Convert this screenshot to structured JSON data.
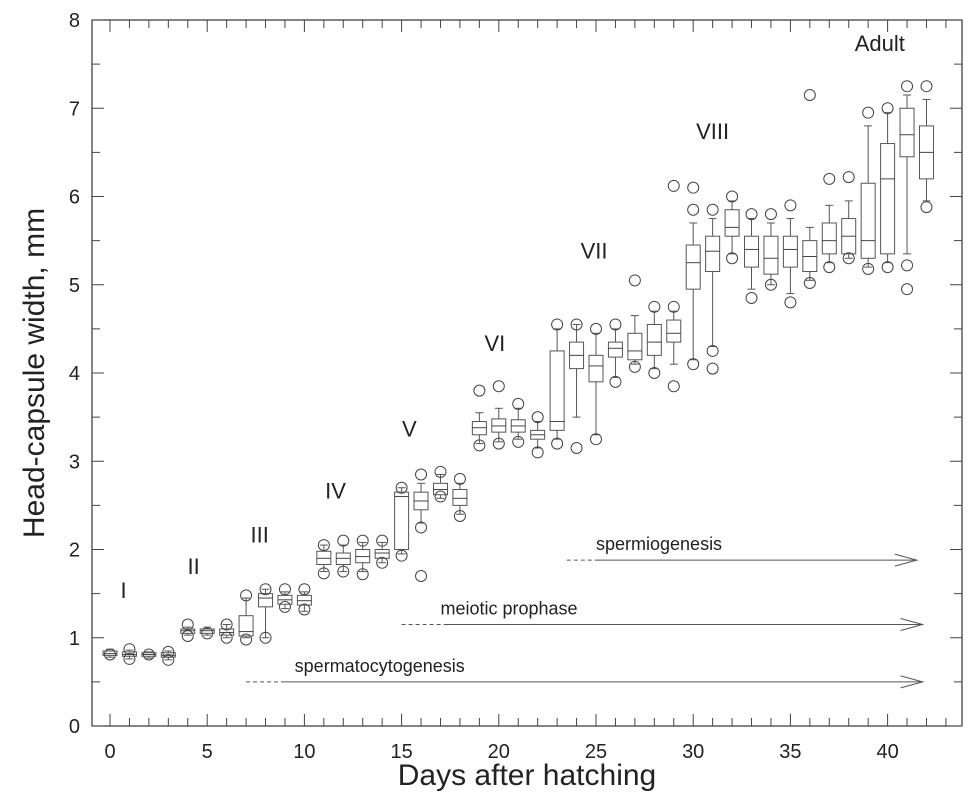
{
  "chart_data": {
    "type": "box",
    "xlabel": "Days after hatching",
    "ylabel": "Head-capsule width, mm",
    "xlim": [
      -1,
      43
    ],
    "ylim": [
      0,
      8
    ],
    "x_ticks": [
      0,
      5,
      10,
      15,
      20,
      25,
      30,
      35,
      40
    ],
    "y_ticks": [
      0,
      1,
      2,
      3,
      4,
      5,
      6,
      7,
      8
    ],
    "boxes": [
      {
        "day": 0,
        "q1": 0.8,
        "median": 0.82,
        "q3": 0.85,
        "low": 0.78,
        "high": 0.87,
        "outliers": [
          0.81
        ]
      },
      {
        "day": 1,
        "q1": 0.79,
        "median": 0.81,
        "q3": 0.84,
        "low": 0.76,
        "high": 0.86,
        "outliers": [
          0.76,
          0.87
        ]
      },
      {
        "day": 2,
        "q1": 0.79,
        "median": 0.81,
        "q3": 0.83,
        "low": 0.77,
        "high": 0.84,
        "outliers": [
          0.81
        ]
      },
      {
        "day": 3,
        "q1": 0.78,
        "median": 0.8,
        "q3": 0.83,
        "low": 0.75,
        "high": 0.85,
        "outliers": [
          0.75,
          0.84
        ]
      },
      {
        "day": 4,
        "q1": 1.05,
        "median": 1.08,
        "q3": 1.1,
        "low": 1.03,
        "high": 1.12,
        "outliers": [
          1.02,
          1.15
        ]
      },
      {
        "day": 5,
        "q1": 1.05,
        "median": 1.08,
        "q3": 1.1,
        "low": 1.03,
        "high": 1.12,
        "outliers": [
          1.05
        ]
      },
      {
        "day": 6,
        "q1": 1.03,
        "median": 1.06,
        "q3": 1.1,
        "low": 1.0,
        "high": 1.15,
        "outliers": [
          1.0,
          1.15
        ]
      },
      {
        "day": 7,
        "q1": 1.02,
        "median": 1.07,
        "q3": 1.25,
        "low": 1.0,
        "high": 1.45,
        "outliers": [
          0.98,
          1.48
        ]
      },
      {
        "day": 8,
        "q1": 1.35,
        "median": 1.45,
        "q3": 1.5,
        "low": 1.0,
        "high": 1.55,
        "outliers": [
          1.0,
          1.55
        ]
      },
      {
        "day": 9,
        "q1": 1.38,
        "median": 1.43,
        "q3": 1.48,
        "low": 1.33,
        "high": 1.52,
        "outliers": [
          1.35,
          1.55
        ]
      },
      {
        "day": 10,
        "q1": 1.37,
        "median": 1.42,
        "q3": 1.48,
        "low": 1.3,
        "high": 1.52,
        "outliers": [
          1.32,
          1.55
        ]
      },
      {
        "day": 11,
        "q1": 1.83,
        "median": 1.9,
        "q3": 1.98,
        "low": 1.75,
        "high": 2.05,
        "outliers": [
          1.73,
          2.05
        ]
      },
      {
        "day": 12,
        "q1": 1.83,
        "median": 1.9,
        "q3": 1.96,
        "low": 1.75,
        "high": 2.05,
        "outliers": [
          1.75,
          2.1
        ]
      },
      {
        "day": 13,
        "q1": 1.85,
        "median": 1.92,
        "q3": 2.0,
        "low": 1.75,
        "high": 2.08,
        "outliers": [
          1.72,
          2.1
        ]
      },
      {
        "day": 14,
        "q1": 1.9,
        "median": 1.96,
        "q3": 2.0,
        "low": 1.85,
        "high": 2.08,
        "outliers": [
          1.85,
          2.1
        ]
      },
      {
        "day": 15,
        "q1": 2.0,
        "median": 2.6,
        "q3": 2.65,
        "low": 1.95,
        "high": 2.7,
        "outliers": [
          1.93,
          2.7
        ]
      },
      {
        "day": 16,
        "q1": 2.45,
        "median": 2.55,
        "q3": 2.65,
        "low": 2.3,
        "high": 2.75,
        "outliers": [
          1.7,
          2.25,
          2.85
        ]
      },
      {
        "day": 17,
        "q1": 2.62,
        "median": 2.68,
        "q3": 2.75,
        "low": 2.58,
        "high": 2.85,
        "outliers": [
          2.6,
          2.88
        ]
      },
      {
        "day": 18,
        "q1": 2.5,
        "median": 2.58,
        "q3": 2.68,
        "low": 2.4,
        "high": 2.75,
        "outliers": [
          2.38,
          2.8
        ]
      },
      {
        "day": 19,
        "q1": 3.3,
        "median": 3.38,
        "q3": 3.45,
        "low": 3.2,
        "high": 3.55,
        "outliers": [
          3.18,
          3.8
        ]
      },
      {
        "day": 20,
        "q1": 3.33,
        "median": 3.4,
        "q3": 3.48,
        "low": 3.22,
        "high": 3.6,
        "outliers": [
          3.2,
          3.85
        ]
      },
      {
        "day": 21,
        "q1": 3.33,
        "median": 3.4,
        "q3": 3.47,
        "low": 3.25,
        "high": 3.6,
        "outliers": [
          3.22,
          3.65
        ]
      },
      {
        "day": 22,
        "q1": 3.25,
        "median": 3.3,
        "q3": 3.35,
        "low": 3.15,
        "high": 3.45,
        "outliers": [
          3.1,
          3.5
        ]
      },
      {
        "day": 23,
        "q1": 3.35,
        "median": 3.45,
        "q3": 4.25,
        "low": 3.25,
        "high": 4.5,
        "outliers": [
          3.2,
          4.55
        ]
      },
      {
        "day": 24,
        "q1": 4.05,
        "median": 4.2,
        "q3": 4.35,
        "low": 3.5,
        "high": 4.55,
        "outliers": [
          3.15,
          4.55
        ]
      },
      {
        "day": 25,
        "q1": 3.9,
        "median": 4.08,
        "q3": 4.2,
        "low": 3.3,
        "high": 4.45,
        "outliers": [
          3.25,
          4.5
        ]
      },
      {
        "day": 26,
        "q1": 4.18,
        "median": 4.28,
        "q3": 4.35,
        "low": 3.95,
        "high": 4.5,
        "outliers": [
          3.9,
          4.55
        ]
      },
      {
        "day": 27,
        "q1": 4.15,
        "median": 4.25,
        "q3": 4.45,
        "low": 4.1,
        "high": 4.65,
        "outliers": [
          4.07,
          5.05
        ]
      },
      {
        "day": 28,
        "q1": 4.2,
        "median": 4.35,
        "q3": 4.55,
        "low": 4.05,
        "high": 4.7,
        "outliers": [
          4.0,
          4.75
        ]
      },
      {
        "day": 29,
        "q1": 4.35,
        "median": 4.45,
        "q3": 4.6,
        "low": 4.1,
        "high": 4.7,
        "outliers": [
          3.85,
          4.75,
          6.12
        ]
      },
      {
        "day": 30,
        "q1": 4.95,
        "median": 5.25,
        "q3": 5.45,
        "low": 4.15,
        "high": 5.7,
        "outliers": [
          4.1,
          5.85,
          6.1
        ]
      },
      {
        "day": 31,
        "q1": 5.15,
        "median": 5.38,
        "q3": 5.55,
        "low": 4.3,
        "high": 5.75,
        "outliers": [
          4.05,
          4.25,
          5.85
        ]
      },
      {
        "day": 32,
        "q1": 5.55,
        "median": 5.65,
        "q3": 5.85,
        "low": 5.35,
        "high": 5.95,
        "outliers": [
          5.3,
          6.0
        ]
      },
      {
        "day": 33,
        "q1": 5.2,
        "median": 5.4,
        "q3": 5.55,
        "low": 4.95,
        "high": 5.75,
        "outliers": [
          4.85,
          5.8
        ]
      },
      {
        "day": 34,
        "q1": 5.12,
        "median": 5.3,
        "q3": 5.55,
        "low": 5.0,
        "high": 5.7,
        "outliers": [
          5.0,
          5.8
        ]
      },
      {
        "day": 35,
        "q1": 5.2,
        "median": 5.4,
        "q3": 5.55,
        "low": 4.9,
        "high": 5.75,
        "outliers": [
          4.8,
          5.9
        ]
      },
      {
        "day": 36,
        "q1": 5.15,
        "median": 5.32,
        "q3": 5.5,
        "low": 5.05,
        "high": 5.65,
        "outliers": [
          5.02,
          7.15
        ]
      },
      {
        "day": 37,
        "q1": 5.35,
        "median": 5.5,
        "q3": 5.7,
        "low": 5.25,
        "high": 5.9,
        "outliers": [
          5.2,
          6.2
        ]
      },
      {
        "day": 38,
        "q1": 5.35,
        "median": 5.55,
        "q3": 5.75,
        "low": 5.3,
        "high": 5.95,
        "outliers": [
          5.3,
          6.22
        ]
      },
      {
        "day": 39,
        "q1": 5.3,
        "median": 5.5,
        "q3": 6.15,
        "low": 5.2,
        "high": 6.8,
        "outliers": [
          5.18,
          6.95
        ]
      },
      {
        "day": 40,
        "q1": 5.35,
        "median": 6.2,
        "q3": 6.6,
        "low": 5.25,
        "high": 6.95,
        "outliers": [
          5.2,
          7.0
        ]
      },
      {
        "day": 41,
        "q1": 6.45,
        "median": 6.7,
        "q3": 7.0,
        "low": 5.35,
        "high": 7.15,
        "outliers": [
          4.95,
          5.22,
          7.25
        ]
      },
      {
        "day": 42,
        "q1": 6.2,
        "median": 6.5,
        "q3": 6.8,
        "low": 5.95,
        "high": 7.1,
        "outliers": [
          5.88,
          7.25
        ]
      }
    ],
    "stage_labels": [
      {
        "text": "I",
        "x": 0.7,
        "y": 1.45
      },
      {
        "text": "II",
        "x": 4.3,
        "y": 1.72
      },
      {
        "text": "III",
        "x": 7.7,
        "y": 2.08
      },
      {
        "text": "IV",
        "x": 11.6,
        "y": 2.58
      },
      {
        "text": "V",
        "x": 15.4,
        "y": 3.28
      },
      {
        "text": "VI",
        "x": 19.8,
        "y": 4.25
      },
      {
        "text": "VII",
        "x": 24.9,
        "y": 5.3
      },
      {
        "text": "VIII",
        "x": 31.0,
        "y": 6.65
      },
      {
        "text": "Adult",
        "x": 39.6,
        "y": 7.65
      }
    ],
    "annotations": [
      {
        "text": "spermatocytogenesis",
        "dash_start": 7,
        "solid_start": 9,
        "end": 41.8,
        "y": 0.5,
        "label_x": 9.5
      },
      {
        "text": "meiotic prophase",
        "dash_start": 15,
        "solid_start": 17.2,
        "end": 41.8,
        "y": 1.15,
        "label_x": 17
      },
      {
        "text": "spermiogenesis",
        "dash_start": 23.5,
        "solid_start": 25,
        "end": 41.5,
        "y": 1.88,
        "label_x": 25
      }
    ]
  }
}
